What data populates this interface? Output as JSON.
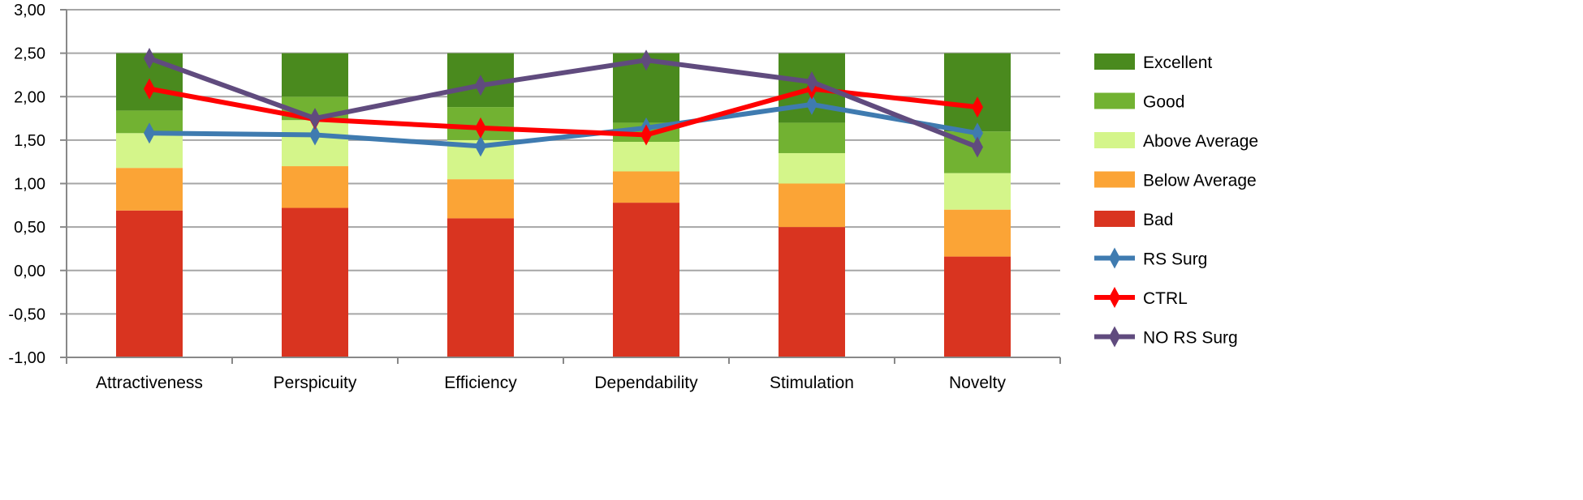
{
  "chart_data": {
    "type": "bar",
    "subtype": "stacked bar with line overlay",
    "title": "",
    "xlabel": "",
    "ylabel": "",
    "ylim": [
      -1.0,
      3.0
    ],
    "y_ticks": [
      "-1,00",
      "-0,50",
      "0,00",
      "0,50",
      "1,00",
      "1,50",
      "2,00",
      "2,50",
      "3,00"
    ],
    "y_tick_values": [
      -1.0,
      -0.5,
      0,
      0.5,
      1.0,
      1.5,
      2.0,
      2.5,
      3.0
    ],
    "grid": true,
    "legend_position": "right",
    "categories": [
      "Attractiveness",
      "Perspicuity",
      "Efficiency",
      "Dependability",
      "Stimulation",
      "Novelty"
    ],
    "bar_baseline": -1.0,
    "stack_series": [
      {
        "name": "Bad",
        "color": "#d93420",
        "upper_bounds": [
          0.69,
          0.72,
          0.6,
          0.78,
          0.5,
          0.16
        ]
      },
      {
        "name": "Below Average",
        "color": "#fba436",
        "upper_bounds": [
          1.18,
          1.2,
          1.05,
          1.14,
          1.0,
          0.7
        ]
      },
      {
        "name": "Above Average",
        "color": "#d4f58a",
        "upper_bounds": [
          1.58,
          1.73,
          1.5,
          1.48,
          1.35,
          1.12
        ]
      },
      {
        "name": "Good",
        "color": "#72b232",
        "upper_bounds": [
          1.84,
          2.0,
          1.88,
          1.7,
          1.7,
          1.6
        ]
      },
      {
        "name": "Excellent",
        "color": "#4a8a1e",
        "upper_bounds": [
          2.5,
          2.5,
          2.5,
          2.5,
          2.5,
          2.5
        ]
      }
    ],
    "line_series": [
      {
        "name": "RS Surg",
        "color": "#3f7bb0",
        "values": [
          1.58,
          1.56,
          1.43,
          1.64,
          1.91,
          1.58
        ]
      },
      {
        "name": "CTRL",
        "color": "#ff0000",
        "values": [
          2.09,
          1.74,
          1.64,
          1.56,
          2.09,
          1.88
        ]
      },
      {
        "name": "NO RS Surg",
        "color": "#604b7e",
        "values": [
          2.44,
          1.75,
          2.13,
          2.42,
          2.17,
          1.42
        ]
      }
    ],
    "legend_order": [
      "Excellent",
      "Good",
      "Above Average",
      "Below Average",
      "Bad",
      "RS Surg",
      "CTRL",
      "NO RS Surg"
    ]
  }
}
